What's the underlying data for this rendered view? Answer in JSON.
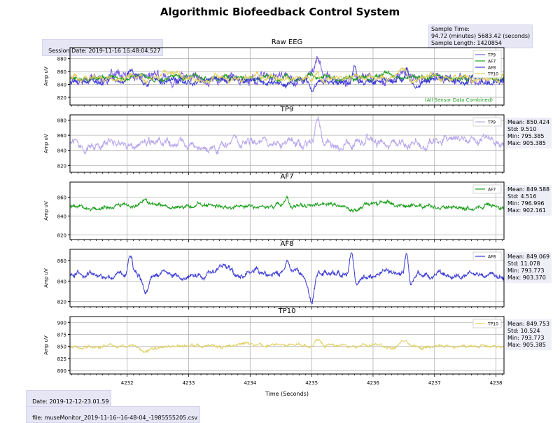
{
  "title": "Algorithmic Biofeedback Control System",
  "session_date": "Session Date: 2019-11-16 16:48:04.527",
  "sample_info": {
    "line1": "Sample Time:",
    "line2": "94.72 (minutes) 5683.42 (seconds)",
    "line3": "Sample Length: 1420854"
  },
  "footer_date": "Date: 2019-12-12-23.01.59",
  "footer_file": "file: museMonitor_2019-11-16--16-48-04_-1985555205.csv",
  "colors": {
    "TP9": "#b8a6ec",
    "AF7": "#1a9e1a",
    "AF8": "#3b3bd6",
    "TP10": "#e0d060"
  },
  "chart_data": [
    {
      "type": "line",
      "title": "Raw EEG",
      "ylabel": "Amp uV",
      "xlabel": "",
      "xlim": [
        4231.07,
        4238.13
      ],
      "ylim": [
        808,
        897
      ],
      "yticks": [
        820,
        840,
        860,
        880
      ],
      "xticks": [
        4232,
        4233,
        4234,
        4235,
        4236,
        4237,
        4238
      ],
      "grid": true,
      "legend": "top-right",
      "annotation": "(All Sensor Data Combined)",
      "series": [
        {
          "name": "TP9",
          "color": "#7a5fe0",
          "mean": 850,
          "amp": 8,
          "events": [
            [
              4235.1,
              20,
              0.06
            ],
            [
              4235.55,
              -8,
              0.07
            ],
            [
              4235.9,
              5,
              0.1
            ]
          ]
        },
        {
          "name": "AF7",
          "color": "#1a9e1a",
          "mean": 850,
          "amp": 4,
          "events": [
            [
              4232.3,
              6,
              0.15
            ],
            [
              4234.6,
              6,
              0.05
            ],
            [
              4236.2,
              4,
              0.2
            ]
          ]
        },
        {
          "name": "AF8",
          "color": "#3b3bd6",
          "mean": 846,
          "amp": 5,
          "events": [
            [
              4232.05,
              16,
              0.05
            ],
            [
              4232.3,
              -14,
              0.07
            ],
            [
              4235.0,
              -22,
              0.06
            ],
            [
              4235.7,
              20,
              0.04
            ],
            [
              4236.55,
              22,
              0.04
            ]
          ]
        },
        {
          "name": "TP10",
          "color": "#e0d060",
          "mean": 850,
          "amp": 5,
          "events": [
            [
              4232.3,
              -8,
              0.08
            ],
            [
              4235.1,
              10,
              0.07
            ],
            [
              4236.5,
              8,
              0.08
            ]
          ]
        }
      ]
    },
    {
      "type": "line",
      "title": "TP9",
      "ylabel": "Amp uV",
      "xlim": [
        4231.07,
        4238.13
      ],
      "ylim": [
        811,
        887
      ],
      "yticks": [
        820,
        840,
        860,
        880
      ],
      "xticks": [
        4232,
        4233,
        4234,
        4235,
        4236,
        4237,
        4238
      ],
      "grid": true,
      "legend": "top-right",
      "stats": {
        "mean": "Mean: 850.424",
        "std": "Std: 9.510",
        "min": "Min: 795.385",
        "max": "Max: 905.385"
      },
      "series": [
        {
          "name": "TP9",
          "color": "#b8a6ec",
          "mean": 850,
          "amp": 6,
          "events": [
            [
              4232.3,
              -6,
              0.2
            ],
            [
              4235.1,
              30,
              0.05
            ],
            [
              4235.5,
              -10,
              0.06
            ],
            [
              4235.9,
              8,
              0.1
            ],
            [
              4237.5,
              6,
              0.2
            ]
          ]
        }
      ]
    },
    {
      "type": "line",
      "title": "AF7",
      "ylabel": "Amp uV",
      "xlim": [
        4231.07,
        4238.13
      ],
      "ylim": [
        815,
        876
      ],
      "yticks": [
        820,
        840,
        860
      ],
      "xticks": [
        4232,
        4233,
        4234,
        4235,
        4236,
        4237,
        4238
      ],
      "grid": true,
      "legend": "top-right",
      "stats": {
        "mean": "Mean: 849.588",
        "std": "Std: 4.516",
        "min": "Min: 796.996",
        "max": "Max: 902.161"
      },
      "series": [
        {
          "name": "AF7",
          "color": "#1a9e1a",
          "mean": 850,
          "amp": 2.5,
          "events": [
            [
              4232.3,
              7,
              0.12
            ],
            [
              4234.6,
              8,
              0.04
            ],
            [
              4235.7,
              -5,
              0.1
            ],
            [
              4236.2,
              5,
              0.2
            ]
          ]
        }
      ]
    },
    {
      "type": "line",
      "title": "AF8",
      "ylabel": "Amp uV",
      "xlim": [
        4231.07,
        4238.13
      ],
      "ylim": [
        815,
        871
      ],
      "yticks": [
        820,
        840,
        860
      ],
      "xticks": [
        4232,
        4233,
        4234,
        4235,
        4236,
        4237,
        4238
      ],
      "grid": true,
      "legend": "top-right",
      "stats": {
        "mean": "Mean: 849.069",
        "std": "Std: 11.078",
        "min": "Min: 793.773",
        "max": "Max: 903.370"
      },
      "series": [
        {
          "name": "AF8",
          "color": "#3b3bd6",
          "mean": 846,
          "amp": 3,
          "events": [
            [
              4232.05,
              18,
              0.05
            ],
            [
              4232.3,
              -16,
              0.07
            ],
            [
              4233.6,
              12,
              0.1
            ],
            [
              4234.6,
              12,
              0.05
            ],
            [
              4235.0,
              -28,
              0.06
            ],
            [
              4235.65,
              22,
              0.04
            ],
            [
              4235.75,
              -12,
              0.05
            ],
            [
              4236.2,
              8,
              0.1
            ],
            [
              4236.55,
              24,
              0.04
            ],
            [
              4236.6,
              -10,
              0.05
            ]
          ]
        }
      ]
    },
    {
      "type": "line",
      "title": "TP10",
      "ylabel": "Amp uV",
      "xlabel": "Time (Seconds)",
      "xlim": [
        4231.07,
        4238.13
      ],
      "ylim": [
        793,
        912
      ],
      "yticks": [
        800,
        825,
        850,
        875,
        900
      ],
      "xticks": [
        4232,
        4233,
        4234,
        4235,
        4236,
        4237,
        4238
      ],
      "grid": true,
      "legend": "top-right",
      "stats": {
        "mean": "Mean: 849.753",
        "std": "Std: 10.524",
        "min": "Min: 793.773",
        "max": "Max: 905.385"
      },
      "series": [
        {
          "name": "TP10",
          "color": "#e0d060",
          "mean": 850,
          "amp": 3.5,
          "events": [
            [
              4232.3,
              -10,
              0.08
            ],
            [
              4234.0,
              6,
              0.3
            ],
            [
              4235.1,
              14,
              0.07
            ],
            [
              4236.5,
              10,
              0.08
            ]
          ]
        }
      ]
    }
  ]
}
